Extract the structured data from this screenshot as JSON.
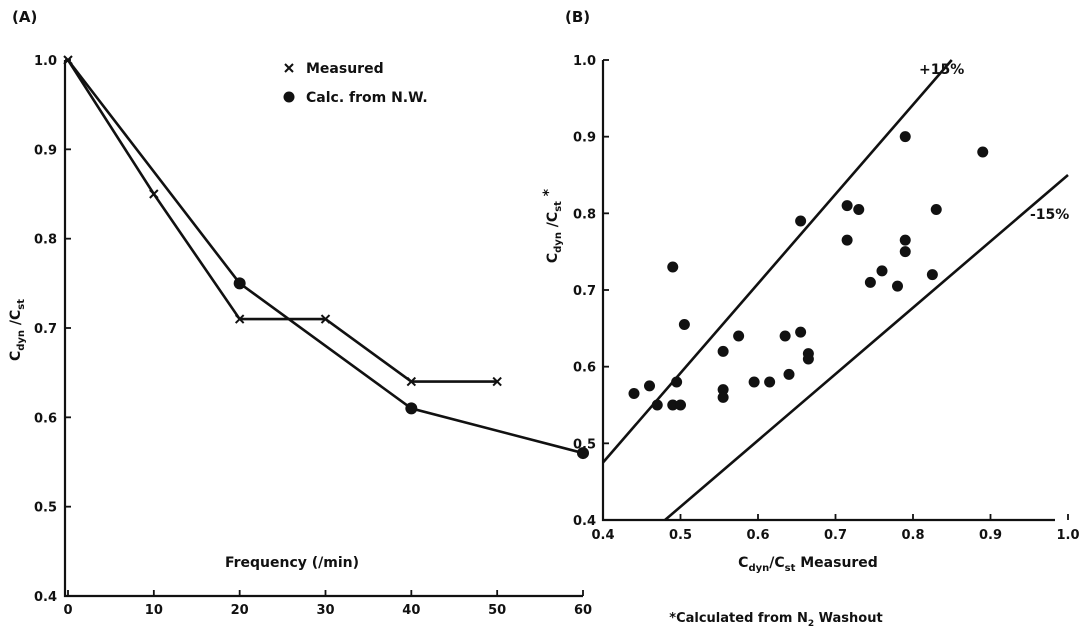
{
  "chart_data": [
    {
      "type": "line",
      "panel_label": "(A)",
      "xlabel": "Frequency (/min)",
      "ylabel_main": "C",
      "ylabel_sub1": "dyn",
      "ylabel_mid": " /C",
      "ylabel_sub2": "st",
      "xlim": [
        0,
        60
      ],
      "ylim": [
        0.4,
        1.0
      ],
      "xticks": [
        "0",
        "10",
        "20",
        "30",
        "40",
        "50",
        "60"
      ],
      "yticks": [
        "0.4",
        "0.5",
        "0.6",
        "0.7",
        "0.8",
        "0.9",
        "1.0"
      ],
      "legend_placement": "top-right",
      "series": [
        {
          "name": "Measured",
          "marker": "x",
          "x": [
            0,
            10,
            20,
            30,
            40,
            50
          ],
          "y": [
            1.0,
            0.85,
            0.71,
            0.71,
            0.64,
            0.64
          ]
        },
        {
          "name": "Calc. from N.W.",
          "marker": "circle",
          "x": [
            0,
            20,
            40,
            60
          ],
          "y": [
            1.0,
            0.75,
            0.61,
            0.56
          ]
        }
      ]
    },
    {
      "type": "scatter",
      "panel_label": "(B)",
      "xlabel_main": "C",
      "xlabel_sub1": "dyn",
      "xlabel_mid": "/C",
      "xlabel_sub2": "st",
      "xlabel_tail": " Measured",
      "ylabel_main": "C",
      "ylabel_sub1": "dyn",
      "ylabel_mid": " /C",
      "ylabel_sub2": "st",
      "ylabel_tail": " *",
      "xlim": [
        0.4,
        1.0
      ],
      "ylim": [
        0.4,
        1.0
      ],
      "xticks": [
        "0.4",
        "0.5",
        "0.6",
        "0.7",
        "0.8",
        "0.9",
        "1.0"
      ],
      "yticks": [
        "0.4",
        "0.5",
        "0.6",
        "0.7",
        "0.8",
        "0.9",
        "1.0"
      ],
      "reference_lines": [
        {
          "label": "+15%",
          "x": [
            0.4,
            0.85
          ],
          "y": [
            0.475,
            1.0
          ]
        },
        {
          "label": "-15%",
          "x": [
            0.48,
            1.0
          ],
          "y": [
            0.4,
            0.85
          ]
        }
      ],
      "points": [
        [
          0.44,
          0.565
        ],
        [
          0.46,
          0.575
        ],
        [
          0.47,
          0.55
        ],
        [
          0.49,
          0.73
        ],
        [
          0.49,
          0.55
        ],
        [
          0.495,
          0.58
        ],
        [
          0.5,
          0.55
        ],
        [
          0.505,
          0.655
        ],
        [
          0.555,
          0.62
        ],
        [
          0.555,
          0.57
        ],
        [
          0.555,
          0.56
        ],
        [
          0.575,
          0.64
        ],
        [
          0.595,
          0.58
        ],
        [
          0.615,
          0.58
        ],
        [
          0.635,
          0.64
        ],
        [
          0.64,
          0.59
        ],
        [
          0.655,
          0.79
        ],
        [
          0.655,
          0.645
        ],
        [
          0.665,
          0.617
        ],
        [
          0.665,
          0.61
        ],
        [
          0.715,
          0.81
        ],
        [
          0.715,
          0.765
        ],
        [
          0.73,
          0.805
        ],
        [
          0.745,
          0.71
        ],
        [
          0.76,
          0.725
        ],
        [
          0.78,
          0.705
        ],
        [
          0.79,
          0.9
        ],
        [
          0.79,
          0.765
        ],
        [
          0.79,
          0.75
        ],
        [
          0.825,
          0.72
        ],
        [
          0.83,
          0.805
        ],
        [
          0.89,
          0.88
        ]
      ]
    }
  ],
  "footnote": {
    "prefix": "*Calculated from N",
    "sub": "2",
    "suffix": " Washout"
  }
}
